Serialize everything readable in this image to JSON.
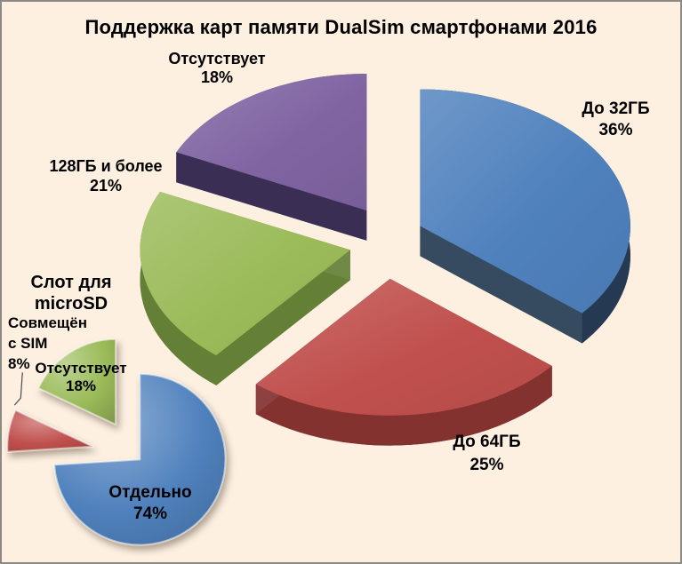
{
  "title": "Поддержка карт памяти DualSim смартфонами 2016",
  "background_color": "#fdf0e1",
  "border_color": "#8d8a86",
  "text_color": "#000000",
  "chart_data": [
    {
      "type": "pie",
      "style": "3d-exploded",
      "name": "memory-card-support",
      "title": "Поддержка карт памяти DualSim смартфонами 2016",
      "direction": "clockwise",
      "start_angle_deg": 0,
      "slices": [
        {
          "label": "До 32ГБ",
          "value": 36,
          "pct": "36%",
          "color": "#4f81bd",
          "side_color": "#253a52"
        },
        {
          "label": "До 64ГБ",
          "value": 25,
          "pct": "25%",
          "color": "#c0504d",
          "side_color": "#833230"
        },
        {
          "label": "128ГБ и более",
          "value": 21,
          "pct": "21%",
          "color": "#9bbb59",
          "side_color": "#647f36"
        },
        {
          "label": "Отсутствует",
          "value": 18,
          "pct": "18%",
          "color": "#8064a2",
          "side_color": "#3b2e55"
        }
      ]
    },
    {
      "type": "pie",
      "style": "2d-exploded-glossy",
      "name": "microsd-slot",
      "title": "Слот для microSD",
      "direction": "clockwise",
      "start_angle_deg": 0,
      "slices": [
        {
          "label": "Отдельно",
          "value": 74,
          "pct": "74%",
          "color": "#4f81bd"
        },
        {
          "label": "Совмещён с SIM",
          "value": 8,
          "pct": "8%",
          "color": "#c0504d"
        },
        {
          "label": "Отсутствует",
          "value": 18,
          "pct": "18%",
          "color": "#9bbb59"
        }
      ]
    }
  ]
}
